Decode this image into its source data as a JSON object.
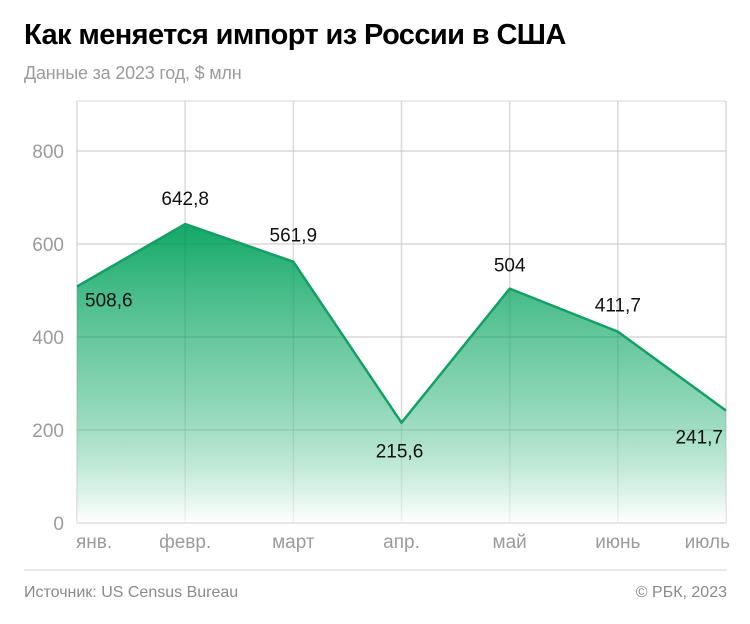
{
  "header": {
    "title": "Как меняется импорт из России в США",
    "subtitle": "Данные за 2023 год, $ млн"
  },
  "footer": {
    "source": "Источник: US Census Bureau",
    "copyright": "© РБК, 2023"
  },
  "colors": {
    "line": "#12a064",
    "fill_top": "#12a867",
    "fill_bottom": "#ffffff",
    "grid": "#e6e6e6",
    "tick_text": "#9b9b9b",
    "label_text": "#111111"
  },
  "chart_data": {
    "type": "area",
    "title": "Как меняется импорт из России в США",
    "subtitle": "Данные за 2023 год, $ млн",
    "xlabel": "",
    "ylabel": "",
    "categories": [
      "янв.",
      "февр.",
      "март",
      "апр.",
      "май",
      "июнь",
      "июль"
    ],
    "values": [
      508.6,
      642.8,
      561.9,
      215.6,
      504,
      411.7,
      241.7
    ],
    "value_labels": [
      "508,6",
      "642,8",
      "561,9",
      "215,6",
      "504",
      "411,7",
      "241,7"
    ],
    "y_ticks": [
      0,
      200,
      400,
      600,
      800
    ],
    "ylim": [
      0,
      900
    ],
    "grid": true,
    "legend": null
  }
}
